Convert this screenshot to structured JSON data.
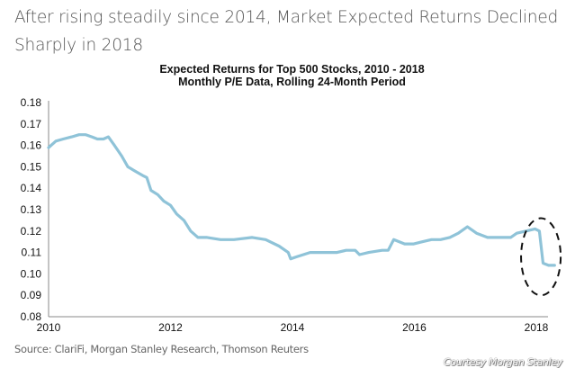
{
  "headline": "After rising steadily since 2014, Market Expected Returns Declined Sharply in 2018",
  "source": "Source: ClariFi, Morgan Stanley Research, Thomson Reuters",
  "courtesy": "Courtesy Morgan Stanley",
  "colors": {
    "line": "#8fc3d8",
    "axis": "#888888",
    "annotation": "#111111"
  },
  "chart_data": {
    "type": "line",
    "title": "Expected Returns for Top 500 Stocks, 2010 - 2018",
    "subtitle": "Monthly P/E Data, Rolling 24-Month Period",
    "xlabel": "",
    "ylabel": "",
    "xlim": [
      2010,
      2018.2
    ],
    "ylim": [
      0.08,
      0.18
    ],
    "grid": false,
    "legend": "none",
    "x_ticks": [
      2010,
      2012,
      2014,
      2016,
      2018
    ],
    "x_tick_labels": [
      "2010",
      "2012",
      "2014",
      "2016",
      "2018"
    ],
    "y_ticks": [
      0.08,
      0.09,
      0.1,
      0.11,
      0.12,
      0.13,
      0.14,
      0.15,
      0.16,
      0.17,
      0.18
    ],
    "y_tick_labels": [
      "0.08",
      "0.09",
      "0.10",
      "0.11",
      "0.12",
      "0.13",
      "0.14",
      "0.15",
      "0.16",
      "0.17",
      "0.18"
    ],
    "series": [
      {
        "name": "Expected Returns",
        "x": [
          2010.0,
          2010.12,
          2010.24,
          2010.38,
          2010.5,
          2010.61,
          2010.71,
          2010.8,
          2010.9,
          2010.98,
          2011.08,
          2011.2,
          2011.3,
          2011.42,
          2011.54,
          2011.61,
          2011.68,
          2011.79,
          2011.89,
          2012.0,
          2012.1,
          2012.22,
          2012.33,
          2012.45,
          2012.6,
          2012.82,
          2013.04,
          2013.34,
          2013.56,
          2013.78,
          2013.93,
          2013.97,
          2014.07,
          2014.29,
          2014.51,
          2014.73,
          2014.88,
          2015.03,
          2015.1,
          2015.25,
          2015.47,
          2015.57,
          2015.66,
          2015.84,
          2015.99,
          2016.13,
          2016.28,
          2016.43,
          2016.58,
          2016.72,
          2016.87,
          2017.02,
          2017.2,
          2017.39,
          2017.58,
          2017.68,
          2017.83,
          2017.98,
          2018.05,
          2018.11,
          2018.2,
          2018.3
        ],
        "values": [
          0.159,
          0.162,
          0.163,
          0.164,
          0.165,
          0.165,
          0.164,
          0.163,
          0.163,
          0.164,
          0.16,
          0.155,
          0.15,
          0.148,
          0.146,
          0.145,
          0.139,
          0.137,
          0.134,
          0.132,
          0.128,
          0.125,
          0.12,
          0.117,
          0.117,
          0.116,
          0.116,
          0.117,
          0.116,
          0.113,
          0.11,
          0.107,
          0.108,
          0.11,
          0.11,
          0.11,
          0.111,
          0.111,
          0.109,
          0.11,
          0.111,
          0.111,
          0.116,
          0.114,
          0.114,
          0.115,
          0.116,
          0.116,
          0.117,
          0.119,
          0.122,
          0.119,
          0.117,
          0.117,
          0.117,
          0.119,
          0.12,
          0.121,
          0.12,
          0.105,
          0.104,
          0.104
        ]
      }
    ],
    "annotations": [
      {
        "type": "dashed-ellipse",
        "label": "2018 decline highlight",
        "x_range": [
          2017.75,
          2018.4
        ],
        "y_range": [
          0.09,
          0.126
        ]
      }
    ]
  }
}
